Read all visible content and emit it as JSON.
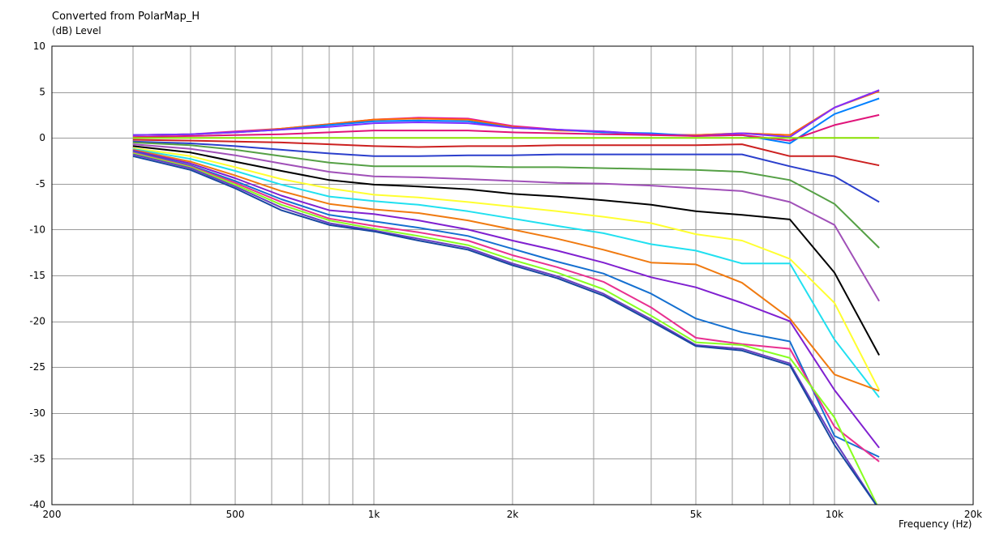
{
  "chart_data": {
    "type": "line",
    "title": "Converted from PolarMap_H",
    "ylabel": "(dB)  Level",
    "xlabel": "Frequency  (Hz)",
    "x_scale": "log",
    "xlim": [
      200,
      20000
    ],
    "ylim": [
      -40,
      10
    ],
    "grid": true,
    "x_ticks": [
      {
        "value": 200,
        "label": "200"
      },
      {
        "value": 500,
        "label": "500"
      },
      {
        "value": 1000,
        "label": "1k"
      },
      {
        "value": 2000,
        "label": "2k"
      },
      {
        "value": 5000,
        "label": "5k"
      },
      {
        "value": 10000,
        "label": "10k"
      },
      {
        "value": 20000,
        "label": "20k"
      }
    ],
    "y_ticks": [
      10,
      5,
      0,
      -5,
      -10,
      -15,
      -20,
      -25,
      -30,
      -35,
      -40
    ],
    "x": [
      300,
      400,
      500,
      630,
      800,
      1000,
      1250,
      1600,
      2000,
      2500,
      3150,
      4000,
      5000,
      6300,
      8000,
      10000,
      12500
    ],
    "series": [
      {
        "color": "#e5179f",
        "values": [
          0.3,
          0.4,
          0.7,
          1.0,
          1.5,
          2.0,
          2.2,
          2.1,
          1.3,
          0.9,
          0.6,
          0.4,
          0.3,
          0.5,
          0.3,
          3.3,
          5.2
        ]
      },
      {
        "color": "#ff6a00",
        "values": [
          0.3,
          0.4,
          0.6,
          1.0,
          1.5,
          2.0,
          2.1,
          2.0,
          1.2,
          0.8,
          0.7,
          0.3,
          0.3,
          0.5,
          0.3,
          3.3,
          5.1
        ]
      },
      {
        "color": "#0080ff",
        "values": [
          0.3,
          0.4,
          0.6,
          0.9,
          1.4,
          1.8,
          1.9,
          1.8,
          1.1,
          0.9,
          0.6,
          0.5,
          0.2,
          0.3,
          -0.6,
          2.6,
          4.3
        ]
      },
      {
        "color": "#7f2fff",
        "values": [
          0.3,
          0.4,
          0.6,
          0.9,
          1.2,
          1.6,
          1.7,
          1.6,
          1.1,
          0.9,
          0.7,
          0.4,
          0.2,
          0.5,
          0.1,
          3.3,
          5.2
        ]
      },
      {
        "color": "#e0147a",
        "values": [
          0.1,
          0.2,
          0.3,
          0.4,
          0.6,
          0.8,
          0.8,
          0.8,
          0.6,
          0.5,
          0.4,
          0.3,
          0.2,
          0.3,
          -0.3,
          1.4,
          2.5
        ]
      },
      {
        "color": "#88e000",
        "values": [
          0,
          0,
          0,
          0,
          0,
          0,
          0,
          0,
          0,
          0,
          0,
          0,
          0,
          0,
          0,
          0,
          0
        ]
      },
      {
        "color": "#cc2020",
        "values": [
          -0.2,
          -0.3,
          -0.4,
          -0.5,
          -0.7,
          -0.9,
          -1.0,
          -0.9,
          -0.9,
          -0.8,
          -0.8,
          -0.8,
          -0.8,
          -0.7,
          -2.0,
          -2.0,
          -3.0
        ]
      },
      {
        "color": "#2b3fcc",
        "values": [
          -0.4,
          -0.6,
          -0.9,
          -1.3,
          -1.7,
          -2.0,
          -2.0,
          -1.9,
          -1.9,
          -1.8,
          -1.8,
          -1.8,
          -1.8,
          -1.8,
          -3.1,
          -4.2,
          -7.0
        ]
      },
      {
        "color": "#55a045",
        "values": [
          -0.5,
          -0.8,
          -1.3,
          -2.0,
          -2.7,
          -3.1,
          -3.1,
          -3.1,
          -3.2,
          -3.2,
          -3.3,
          -3.4,
          -3.5,
          -3.7,
          -4.6,
          -7.2,
          -12.0
        ]
      },
      {
        "color": "#a050b8",
        "values": [
          -0.7,
          -1.2,
          -1.9,
          -2.8,
          -3.7,
          -4.2,
          -4.3,
          -4.5,
          -4.7,
          -4.9,
          -5.0,
          -5.2,
          -5.5,
          -5.8,
          -7.0,
          -9.5,
          -17.8
        ]
      },
      {
        "color": "#000000",
        "values": [
          -0.9,
          -1.6,
          -2.6,
          -3.6,
          -4.6,
          -5.1,
          -5.3,
          -5.6,
          -6.1,
          -6.4,
          -6.8,
          -7.3,
          -8.0,
          -8.4,
          -8.9,
          -14.7,
          -23.7
        ]
      },
      {
        "color": "#ffff30",
        "values": [
          -1.1,
          -2.0,
          -3.2,
          -4.5,
          -5.5,
          -6.2,
          -6.5,
          -7.0,
          -7.5,
          -8.0,
          -8.6,
          -9.3,
          -10.5,
          -11.2,
          -13.2,
          -18.0,
          -27.5
        ]
      },
      {
        "color": "#20e0f0",
        "values": [
          -1.2,
          -2.3,
          -3.6,
          -5.1,
          -6.4,
          -6.9,
          -7.3,
          -8.0,
          -8.8,
          -9.6,
          -10.4,
          -11.6,
          -12.3,
          -13.7,
          -13.7,
          -22.0,
          -28.3
        ]
      },
      {
        "color": "#f07a10",
        "values": [
          -1.3,
          -2.6,
          -4.1,
          -5.8,
          -7.2,
          -7.8,
          -8.2,
          -9.0,
          -10.0,
          -11.0,
          -12.2,
          -13.6,
          -13.8,
          -15.8,
          -19.7,
          -25.8,
          -27.6
        ]
      },
      {
        "color": "#8020d0",
        "values": [
          -1.4,
          -2.8,
          -4.4,
          -6.3,
          -7.9,
          -8.3,
          -9.0,
          -10.0,
          -11.2,
          -12.3,
          -13.6,
          -15.2,
          -16.3,
          -18.0,
          -20.0,
          -27.5,
          -33.8
        ]
      },
      {
        "color": "#1570d0",
        "values": [
          -1.5,
          -3.0,
          -4.7,
          -6.7,
          -8.4,
          -9.1,
          -9.8,
          -10.7,
          -12.1,
          -13.5,
          -14.8,
          -17.0,
          -19.7,
          -21.2,
          -22.2,
          -32.5,
          -34.8
        ]
      },
      {
        "color": "#e83090",
        "values": [
          -1.6,
          -3.1,
          -4.9,
          -7.0,
          -8.8,
          -9.6,
          -10.3,
          -11.2,
          -12.8,
          -14.1,
          -15.7,
          -18.5,
          -21.8,
          -22.5,
          -23.0,
          -31.5,
          -35.3
        ]
      },
      {
        "color": "#88ff20",
        "values": [
          -1.7,
          -3.2,
          -5.1,
          -7.3,
          -9.0,
          -9.9,
          -10.7,
          -11.7,
          -13.3,
          -14.7,
          -16.5,
          -19.4,
          -22.3,
          -22.6,
          -24.0,
          -30.5,
          -40.5
        ]
      },
      {
        "color": "#6840c0",
        "values": [
          -1.8,
          -3.3,
          -5.3,
          -7.6,
          -9.3,
          -10.1,
          -11.0,
          -12.0,
          -13.7,
          -15.1,
          -17.0,
          -19.8,
          -22.6,
          -23.0,
          -24.6,
          -33.0,
          -40.5
        ]
      },
      {
        "color": "#1848a0",
        "values": [
          -2.0,
          -3.5,
          -5.5,
          -7.9,
          -9.5,
          -10.2,
          -11.2,
          -12.2,
          -13.9,
          -15.3,
          -17.2,
          -20.0,
          -22.7,
          -23.2,
          -24.8,
          -33.5,
          -40.5
        ]
      }
    ]
  }
}
